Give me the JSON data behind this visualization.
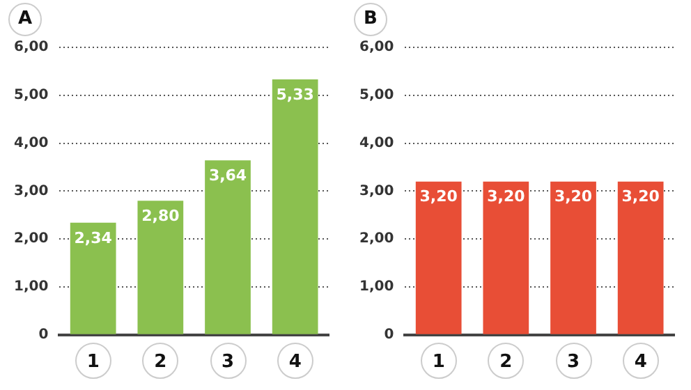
{
  "chart_data": [
    {
      "type": "bar",
      "title": "A",
      "categories": [
        "1",
        "2",
        "3",
        "4"
      ],
      "values": [
        2.34,
        2.8,
        3.64,
        5.33
      ],
      "value_labels": [
        "2,34",
        "2,80",
        "3,64",
        "5,33"
      ],
      "color": "#8bc04f",
      "ylim": [
        0,
        6
      ],
      "yticks": [
        {
          "value": 0,
          "label": "0"
        },
        {
          "value": 1,
          "label": "1,00"
        },
        {
          "value": 2,
          "label": "2,00"
        },
        {
          "value": 3,
          "label": "3,00"
        },
        {
          "value": 4,
          "label": "4,00"
        },
        {
          "value": 5,
          "label": "5,00"
        },
        {
          "value": 6,
          "label": "6,00"
        }
      ],
      "grid": "y"
    },
    {
      "type": "bar",
      "title": "B",
      "categories": [
        "1",
        "2",
        "3",
        "4"
      ],
      "values": [
        3.2,
        3.2,
        3.2,
        3.2
      ],
      "value_labels": [
        "3,20",
        "3,20",
        "3,20",
        "3,20"
      ],
      "color": "#e84e36",
      "ylim": [
        0,
        6
      ],
      "yticks": [
        {
          "value": 0,
          "label": "0"
        },
        {
          "value": 1,
          "label": "1,00"
        },
        {
          "value": 2,
          "label": "2,00"
        },
        {
          "value": 3,
          "label": "3,00"
        },
        {
          "value": 4,
          "label": "4,00"
        },
        {
          "value": 5,
          "label": "5,00"
        },
        {
          "value": 6,
          "label": "6,00"
        }
      ],
      "grid": "y"
    }
  ]
}
